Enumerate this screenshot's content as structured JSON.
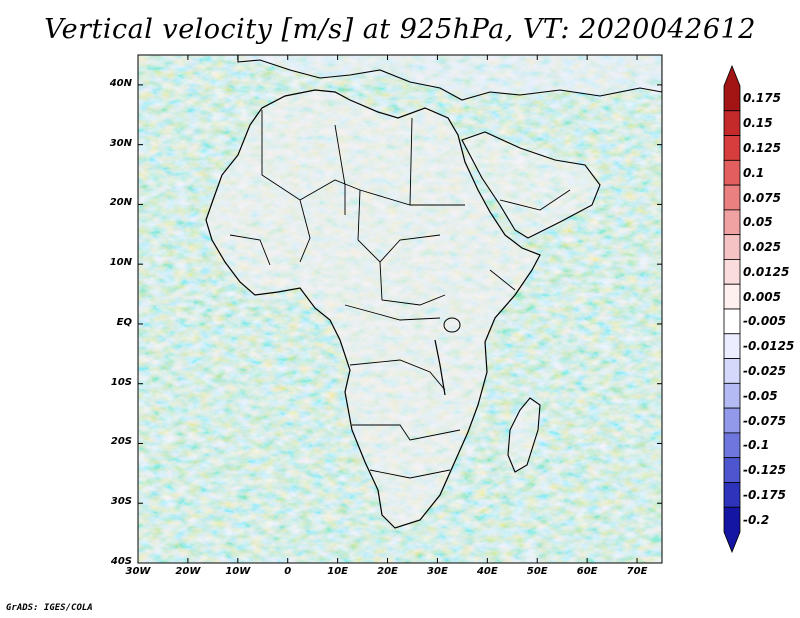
{
  "title": "Vertical velocity [m/s] at 925hPa, VT: 2020042612",
  "map": {
    "lat_ticks": [
      "40N",
      "30N",
      "20N",
      "10N",
      "EQ",
      "10S",
      "20S",
      "30S",
      "40S"
    ],
    "lon_ticks": [
      "30W",
      "20W",
      "10W",
      "0",
      "10E",
      "20E",
      "30E",
      "40E",
      "50E",
      "60E",
      "70E"
    ],
    "lat_range": [
      -40,
      45
    ],
    "lon_range": [
      -30,
      75
    ]
  },
  "colorbar": {
    "labels": [
      "0.175",
      "0.15",
      "0.125",
      "0.1",
      "0.075",
      "0.05",
      "0.025",
      "0.0125",
      "0.005",
      "-0.005",
      "-0.0125",
      "-0.025",
      "-0.05",
      "-0.075",
      "-0.1",
      "-0.125",
      "-0.175",
      "-0.2"
    ],
    "colors": [
      "#a31515",
      "#c42a2a",
      "#d83d3d",
      "#e35e5e",
      "#ea8080",
      "#f0a2a2",
      "#f5c3c3",
      "#fadcdc",
      "#fff0f0",
      "#ffffff",
      "#eceeff",
      "#d4d8fb",
      "#b4baf3",
      "#9299ea",
      "#6f77df",
      "#4d55cf",
      "#2d34bb",
      "#1515a3"
    ]
  },
  "credit": "GrADS: IGES/COLA"
}
